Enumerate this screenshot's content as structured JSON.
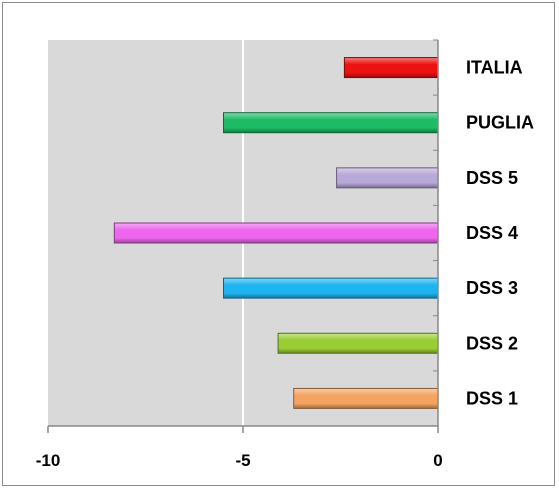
{
  "chart_data": {
    "type": "bar",
    "orientation": "horizontal",
    "categories": [
      "DSS 1",
      "DSS 2",
      "DSS 3",
      "DSS 4",
      "DSS 5",
      "PUGLIA",
      "ITALIA"
    ],
    "values": [
      -3.7,
      -4.1,
      -5.5,
      -8.3,
      -2.6,
      -5.5,
      -2.4
    ],
    "colors": [
      "#f4a460",
      "#9acd32",
      "#1eb4f0",
      "#ee66ee",
      "#b8a8d8",
      "#1dbb66",
      "#ee1111"
    ],
    "xlim": [
      -10,
      0
    ],
    "xticks": [
      "-10",
      "-5",
      "0"
    ],
    "title": "",
    "xlabel": "",
    "ylabel": "",
    "grid": "vertical",
    "plot_background": "#d9d9d9",
    "category_axis_position": "right"
  }
}
